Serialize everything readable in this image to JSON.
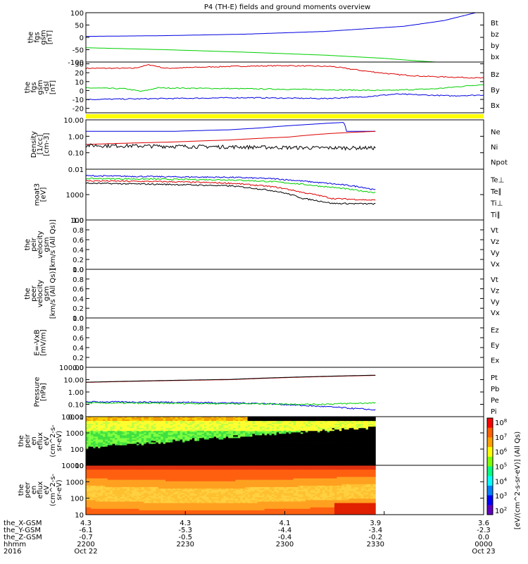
{
  "title": "P4 (TH-E) fields and ground moments overview",
  "colors": {
    "black": "#000000",
    "red": "#dd0000",
    "green": "#00d000",
    "blue": "#0000e0",
    "yellow": "#ffff00"
  },
  "chart_data": [
    {
      "type": "line",
      "ylabel": [
        "the",
        "fgs",
        "gsm",
        "[nT]"
      ],
      "yticks": [
        "100",
        "50",
        "0",
        "-50",
        "-100"
      ],
      "ylim": [
        -100,
        100
      ],
      "legend": [
        {
          "name": "Bt",
          "color": "black"
        },
        {
          "name": "bz",
          "color": "red"
        },
        {
          "name": "by",
          "color": "green"
        },
        {
          "name": "bx",
          "color": "blue"
        }
      ],
      "series": [
        {
          "name": "bx",
          "color": "blue",
          "points": [
            [
              0,
              4
            ],
            [
              0.2,
              7
            ],
            [
              0.4,
              13
            ],
            [
              0.6,
              24
            ],
            [
              0.8,
              45
            ],
            [
              0.9,
              68
            ],
            [
              1,
              108
            ]
          ]
        },
        {
          "name": "by",
          "color": "green",
          "points": [
            [
              0,
              -42
            ],
            [
              0.2,
              -50
            ],
            [
              0.4,
              -60
            ],
            [
              0.6,
              -72
            ],
            [
              0.75,
              -85
            ],
            [
              0.83,
              -95
            ],
            [
              0.88,
              -100
            ]
          ]
        }
      ]
    },
    {
      "type": "line",
      "ylabel": [
        "the",
        "fgs",
        "gsm",
        "-dsl",
        "[nT]"
      ],
      "yticks": [
        "30",
        "20",
        "10",
        "0",
        "-10",
        "-20"
      ],
      "ylim": [
        -25,
        32
      ],
      "legend": [
        {
          "name": "Bz",
          "color": "red"
        },
        {
          "name": "By",
          "color": "green"
        },
        {
          "name": "Bx",
          "color": "blue"
        }
      ],
      "series": [
        {
          "name": "Bz",
          "color": "red",
          "points": [
            [
              0,
              25
            ],
            [
              0.12,
              25
            ],
            [
              0.16,
              29
            ],
            [
              0.2,
              25
            ],
            [
              0.35,
              27
            ],
            [
              0.5,
              28
            ],
            [
              0.62,
              27
            ],
            [
              0.7,
              22
            ],
            [
              0.78,
              18
            ],
            [
              0.85,
              16
            ],
            [
              1,
              14
            ]
          ]
        },
        {
          "name": "By",
          "color": "green",
          "points": [
            [
              0,
              3
            ],
            [
              0.1,
              2
            ],
            [
              0.14,
              -1
            ],
            [
              0.18,
              3
            ],
            [
              0.4,
              2
            ],
            [
              0.6,
              1
            ],
            [
              0.75,
              0
            ],
            [
              0.88,
              2
            ],
            [
              1,
              7
            ]
          ]
        },
        {
          "name": "Bx",
          "color": "blue",
          "points": [
            [
              0,
              -10
            ],
            [
              0.2,
              -9
            ],
            [
              0.4,
              -8
            ],
            [
              0.6,
              -9
            ],
            [
              0.7,
              -7
            ],
            [
              0.78,
              -4
            ],
            [
              0.85,
              -5
            ],
            [
              0.92,
              -6
            ],
            [
              1,
              -5
            ]
          ]
        }
      ]
    },
    {
      "type": "line",
      "ylabel": [
        "Density",
        "[1/cc]",
        "[cm-3]"
      ],
      "yticks": [
        "10.00",
        "1.00",
        "0.10",
        "0.01"
      ],
      "ylim": [
        0.01,
        10
      ],
      "scale": "log",
      "legend": [
        {
          "name": "Ne",
          "color": "red"
        },
        {
          "name": "Ni",
          "color": "black"
        },
        {
          "name": "Npot",
          "color": "blue"
        }
      ],
      "series": [
        {
          "name": "Npot",
          "color": "blue",
          "points": [
            [
              0,
              2.0
            ],
            [
              0.3,
              2.0
            ],
            [
              0.5,
              2.5
            ],
            [
              0.6,
              3.2
            ],
            [
              0.75,
              5
            ],
            [
              0.89,
              7
            ],
            [
              0.9,
              2.0
            ],
            [
              1,
              2.0
            ]
          ]
        },
        {
          "name": "Ne",
          "color": "red",
          "points": [
            [
              0,
              0.32
            ],
            [
              0.3,
              0.45
            ],
            [
              0.5,
              0.6
            ],
            [
              0.7,
              0.9
            ],
            [
              0.85,
              1.5
            ],
            [
              1,
              2.0
            ]
          ]
        },
        {
          "name": "Ni",
          "color": "black",
          "points": [
            [
              0,
              0.28
            ],
            [
              0.2,
              0.26
            ],
            [
              0.4,
              0.24
            ],
            [
              0.6,
              0.22
            ],
            [
              0.8,
              0.2
            ],
            [
              1,
              0.2
            ]
          ]
        }
      ]
    },
    {
      "type": "line",
      "ylabel": [
        "moat3",
        "[eV]"
      ],
      "yticks": [
        "1000",
        "100"
      ],
      "ylim": [
        100,
        10000
      ],
      "scale": "log",
      "legend": [
        {
          "name": "Te⊥",
          "color": "red"
        },
        {
          "name": "Te∥",
          "color": "black"
        },
        {
          "name": "Ti⊥",
          "color": "blue"
        },
        {
          "name": "Ti∥",
          "color": "green"
        }
      ],
      "series": [
        {
          "name": "Ti⊥",
          "color": "blue",
          "points": [
            [
              0,
              5500
            ],
            [
              0.3,
              5000
            ],
            [
              0.5,
              4800
            ],
            [
              0.65,
              4200
            ],
            [
              0.8,
              3000
            ],
            [
              0.95,
              2000
            ],
            [
              1,
              1500
            ]
          ]
        },
        {
          "name": "Ti∥",
          "color": "green",
          "points": [
            [
              0,
              4300
            ],
            [
              0.3,
              4000
            ],
            [
              0.5,
              3800
            ],
            [
              0.65,
              3200
            ],
            [
              0.8,
              2200
            ],
            [
              0.95,
              1400
            ],
            [
              1,
              1200
            ]
          ]
        },
        {
          "name": "Te⊥",
          "color": "red",
          "points": [
            [
              0,
              3500
            ],
            [
              0.3,
              3200
            ],
            [
              0.5,
              2800
            ],
            [
              0.65,
              2000
            ],
            [
              0.75,
              1200
            ],
            [
              0.85,
              700
            ],
            [
              1,
              600
            ]
          ]
        },
        {
          "name": "Te∥",
          "color": "black",
          "points": [
            [
              0,
              2800
            ],
            [
              0.3,
              2500
            ],
            [
              0.5,
              2200
            ],
            [
              0.65,
              1400
            ],
            [
              0.75,
              700
            ],
            [
              0.85,
              450
            ],
            [
              1,
              430
            ]
          ]
        }
      ]
    },
    {
      "type": "line",
      "ylabel": [
        "the",
        "peir",
        "velocity",
        "gsm",
        "[km/s (All Qs)]"
      ],
      "yticks": [
        "1.0",
        "0.8",
        "0.6",
        "0.4",
        "0.2",
        "0.0"
      ],
      "ylim": [
        0,
        1
      ],
      "legend": [
        {
          "name": "Vt",
          "color": "black"
        },
        {
          "name": "Vz",
          "color": "red"
        },
        {
          "name": "Vy",
          "color": "green"
        },
        {
          "name": "Vx",
          "color": "blue"
        }
      ],
      "series": []
    },
    {
      "type": "line",
      "ylabel": [
        "the",
        "peer",
        "velocity",
        "gsm",
        "[km/s (All Qs)]"
      ],
      "yticks": [
        "1.0",
        "0.8",
        "0.6",
        "0.4",
        "0.2",
        "0.0"
      ],
      "ylim": [
        0,
        1
      ],
      "legend": [
        {
          "name": "Vt",
          "color": "black"
        },
        {
          "name": "Vz",
          "color": "red"
        },
        {
          "name": "Vy",
          "color": "green"
        },
        {
          "name": "Vx",
          "color": "blue"
        }
      ],
      "series": []
    },
    {
      "type": "line",
      "ylabel": [
        "E=-VxB",
        "[mV/m]"
      ],
      "yticks": [
        "1.0",
        "0.8",
        "0.6",
        "0.4",
        "0.2",
        "0.0"
      ],
      "ylim": [
        0,
        1
      ],
      "legend": [
        {
          "name": "Ez",
          "color": "red"
        },
        {
          "name": "Ey",
          "color": "green"
        },
        {
          "name": "Ex",
          "color": "blue"
        }
      ],
      "series": []
    },
    {
      "type": "line",
      "ylabel": [
        "Pressure",
        "[nPa]"
      ],
      "yticks": [
        "100.00",
        "10.00",
        "1.00",
        "0.10",
        "0.01"
      ],
      "ylim": [
        0.01,
        100
      ],
      "scale": "log",
      "legend": [
        {
          "name": "Pt",
          "color": "black"
        },
        {
          "name": "Pb",
          "color": "red"
        },
        {
          "name": "Pe",
          "color": "green"
        },
        {
          "name": "Pi",
          "color": "blue"
        }
      ],
      "series": [
        {
          "name": "Pb",
          "color": "red",
          "points": [
            [
              0,
              6
            ],
            [
              0.5,
              10
            ],
            [
              1,
              22
            ]
          ]
        },
        {
          "name": "Pt",
          "color": "black",
          "points": [
            [
              0,
              6.2
            ],
            [
              0.5,
              10.5
            ],
            [
              1,
              23
            ]
          ]
        },
        {
          "name": "Pi",
          "color": "blue",
          "points": [
            [
              0,
              0.16
            ],
            [
              0.3,
              0.15
            ],
            [
              0.6,
              0.12
            ],
            [
              0.75,
              0.08
            ],
            [
              0.9,
              0.05
            ],
            [
              1,
              0.035
            ]
          ]
        },
        {
          "name": "Pe",
          "color": "green",
          "points": [
            [
              0,
              0.13
            ],
            [
              0.3,
              0.12
            ],
            [
              0.6,
              0.11
            ],
            [
              0.8,
              0.1
            ],
            [
              1,
              0.13
            ]
          ]
        }
      ]
    },
    {
      "type": "heatmap",
      "ylabel": [
        "the",
        "peir",
        "en",
        "eflux",
        "eV",
        "(cm^2-s-",
        "sr-eV)"
      ],
      "yticks": [
        "10000",
        "1000",
        "100",
        "10"
      ],
      "ylim": [
        10,
        10000
      ],
      "scale": "log"
    },
    {
      "type": "heatmap",
      "ylabel": [
        "the",
        "peer",
        "en",
        "eflux",
        "eV",
        "(cm^2-s-",
        "sr-eV)"
      ],
      "yticks": [
        "10000",
        "1000",
        "100",
        "10"
      ],
      "ylim": [
        10,
        10000
      ],
      "scale": "log"
    }
  ],
  "colorbar": {
    "ticks": [
      "10^8",
      "10^7",
      "10^6",
      "10^5",
      "10^4",
      "10^3",
      "10^2"
    ],
    "label": "[eV/(cm^2-s-sr-eV)] (All Qs)"
  },
  "xaxis": {
    "rows": [
      {
        "label": "the_X-GSM",
        "values": [
          "4.3",
          "4.3",
          "4.1",
          "3.9",
          "3.6"
        ]
      },
      {
        "label": "the_Y-GSM",
        "values": [
          "-6.1",
          "-5.3",
          "-4.4",
          "-3.4",
          "-2.3"
        ]
      },
      {
        "label": "the_Z-GSM",
        "values": [
          "-0.7",
          "-0.5",
          "-0.4",
          "-0.2",
          "0.0"
        ]
      },
      {
        "label": "hhmm",
        "values": [
          "2200",
          "2230",
          "2300",
          "2330",
          "0000"
        ]
      },
      {
        "label": "2016",
        "values": [
          "Oct 22",
          "",
          "",
          "",
          "Oct 23"
        ]
      }
    ]
  }
}
